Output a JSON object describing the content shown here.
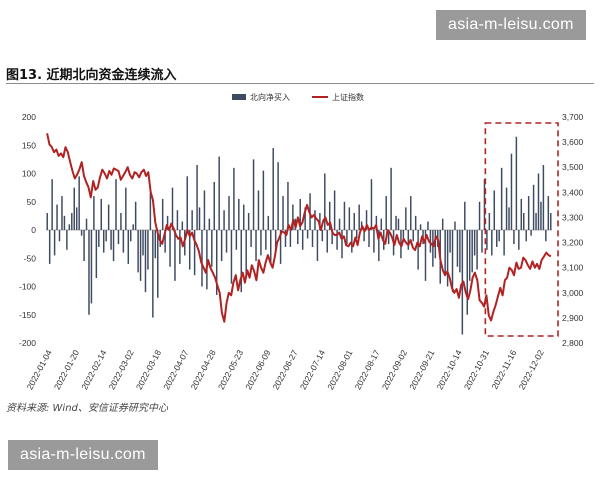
{
  "watermark": {
    "text": "asia-m-leisu.com"
  },
  "figure": {
    "title": "图13. 近期北向资金连续流入",
    "source": "资料来源: Wind、安信证券研究中心"
  },
  "chart_data": {
    "type": "bar+line",
    "legend": [
      "北向净买入",
      "上证指数"
    ],
    "legend_position": "top-center",
    "grid": false,
    "y_left": {
      "min": -200,
      "max": 200,
      "ticks": [
        "200",
        "150",
        "100",
        "50",
        "0",
        "-50",
        "-100",
        "-150",
        "-200"
      ]
    },
    "y_right": {
      "min": 2800,
      "max": 3700,
      "ticks": [
        "3,700",
        "3,600",
        "3,500",
        "3,400",
        "3,300",
        "3,200",
        "3,100",
        "3,000",
        "2,900",
        "2,800"
      ]
    },
    "x_ticks": [
      "2022-01-04",
      "2022-01-20",
      "2022-02-14",
      "2022-03-02",
      "2022-03-18",
      "2022-04-07",
      "2022-04-28",
      "2022-05-23",
      "2022-06-09",
      "2022-06-27",
      "2022-07-14",
      "2022-08-01",
      "2022-08-17",
      "2022-09-02",
      "2022-09-21",
      "2022-10-14",
      "2022-10-31",
      "2022-11-16",
      "2022-12-02"
    ],
    "series": [
      {
        "name": "北向净买入",
        "kind": "bar",
        "color": "#3d4a61",
        "values": [
          30,
          -60,
          90,
          -45,
          45,
          -20,
          60,
          25,
          -35,
          10,
          30,
          75,
          40,
          95,
          -10,
          -55,
          20,
          -150,
          -130,
          60,
          -85,
          -30,
          55,
          -40,
          -20,
          45,
          -35,
          -55,
          90,
          -25,
          30,
          -40,
          75,
          -60,
          -20,
          10,
          50,
          -75,
          -90,
          -45,
          -110,
          -70,
          65,
          -155,
          -50,
          -120,
          -30,
          55,
          -40,
          25,
          -65,
          75,
          -90,
          35,
          -60,
          15,
          -45,
          95,
          -70,
          35,
          -80,
          115,
          40,
          -100,
          70,
          -105,
          20,
          -65,
          85,
          -115,
          130,
          -55,
          35,
          -40,
          60,
          -95,
          110,
          -35,
          55,
          -110,
          45,
          -85,
          30,
          -30,
          125,
          -55,
          70,
          -45,
          105,
          -35,
          25,
          -60,
          145,
          -40,
          120,
          -60,
          60,
          -30,
          85,
          -30,
          45,
          20,
          -25,
          55,
          -35,
          40,
          -15,
          65,
          -30,
          35,
          -55,
          30,
          -20,
          100,
          -40,
          50,
          -25,
          70,
          -35,
          20,
          -50,
          50,
          -25,
          40,
          -40,
          30,
          -15,
          45,
          15,
          -20,
          35,
          -30,
          90,
          -40,
          25,
          -55,
          20,
          -35,
          60,
          -25,
          110,
          -45,
          25,
          20,
          -50,
          -15,
          40,
          -35,
          60,
          -20,
          25,
          -70,
          10,
          -25,
          -90,
          15,
          -40,
          -65,
          -50,
          -30,
          -95,
          20,
          -80,
          -100,
          -40,
          -110,
          15,
          -65,
          -75,
          -185,
          50,
          -150,
          -90,
          -75,
          -45,
          -70,
          50,
          -40,
          90,
          -35,
          30,
          -45,
          70,
          -30,
          -20,
          110,
          -45,
          75,
          40,
          135,
          -25,
          165,
          -35,
          55,
          30,
          -20,
          60,
          -10,
          80,
          30,
          100,
          50,
          115,
          -20,
          60,
          30
        ]
      },
      {
        "name": "上证指数",
        "kind": "line",
        "color": "#b22222",
        "values": [
          3635,
          3590,
          3580,
          3560,
          3570,
          3545,
          3555,
          3540,
          3580,
          3560,
          3520,
          3485,
          3455,
          3470,
          3490,
          3520,
          3465,
          3440,
          3420,
          3380,
          3445,
          3410,
          3420,
          3460,
          3490,
          3475,
          3455,
          3485,
          3470,
          3495,
          3490,
          3485,
          3450,
          3465,
          3480,
          3500,
          3470,
          3455,
          3480,
          3475,
          3460,
          3480,
          3490,
          3465,
          3480,
          3400,
          3370,
          3280,
          3240,
          3210,
          3195,
          3230,
          3270,
          3250,
          3275,
          3255,
          3230,
          3215,
          3220,
          3185,
          3215,
          3250,
          3225,
          3240,
          3210,
          3190,
          3165,
          3120,
          3100,
          3080,
          3130,
          3100,
          3080,
          3060,
          3030,
          3000,
          2920,
          2885,
          2960,
          3000,
          2990,
          3040,
          3070,
          3010,
          3050,
          3080,
          3040,
          3090,
          3060,
          3110,
          3085,
          3050,
          3130,
          3100,
          3080,
          3120,
          3150,
          3120,
          3100,
          3145,
          3200,
          3220,
          3245,
          3240,
          3230,
          3270,
          3250,
          3290,
          3260,
          3300,
          3265,
          3280,
          3320,
          3350,
          3320,
          3300,
          3310,
          3295,
          3285,
          3250,
          3285,
          3300,
          3270,
          3280,
          3240,
          3230,
          3230,
          3240,
          3215,
          3225,
          3190,
          3185,
          3200,
          3185,
          3220,
          3190,
          3240,
          3265,
          3245,
          3270,
          3250,
          3260,
          3255,
          3270,
          3215,
          3240,
          3210,
          3195,
          3250,
          3240,
          3220,
          3190,
          3230,
          3200,
          3185,
          3215,
          3200,
          3190,
          3210,
          3180,
          3170,
          3200,
          3185,
          3225,
          3200,
          3230,
          3205,
          3195,
          3185,
          3225,
          3210,
          3130,
          3090,
          3070,
          3085,
          3060,
          3020,
          3000,
          3015,
          2980,
          3030,
          3045,
          3000,
          2975,
          3010,
          3060,
          3080,
          3050,
          2970,
          2960,
          2945,
          2990,
          2910,
          2890,
          2925,
          2950,
          2985,
          3020,
          2990,
          3050,
          3060,
          3100,
          3090,
          3070,
          3120,
          3095,
          3100,
          3140,
          3130,
          3110,
          3095,
          3125,
          3100,
          3115,
          3095,
          3130,
          3145,
          3160,
          3150,
          3145
        ]
      }
    ],
    "highlight_box": {
      "from_category_index": 180,
      "style": "dashed",
      "color": "#b22222"
    }
  }
}
